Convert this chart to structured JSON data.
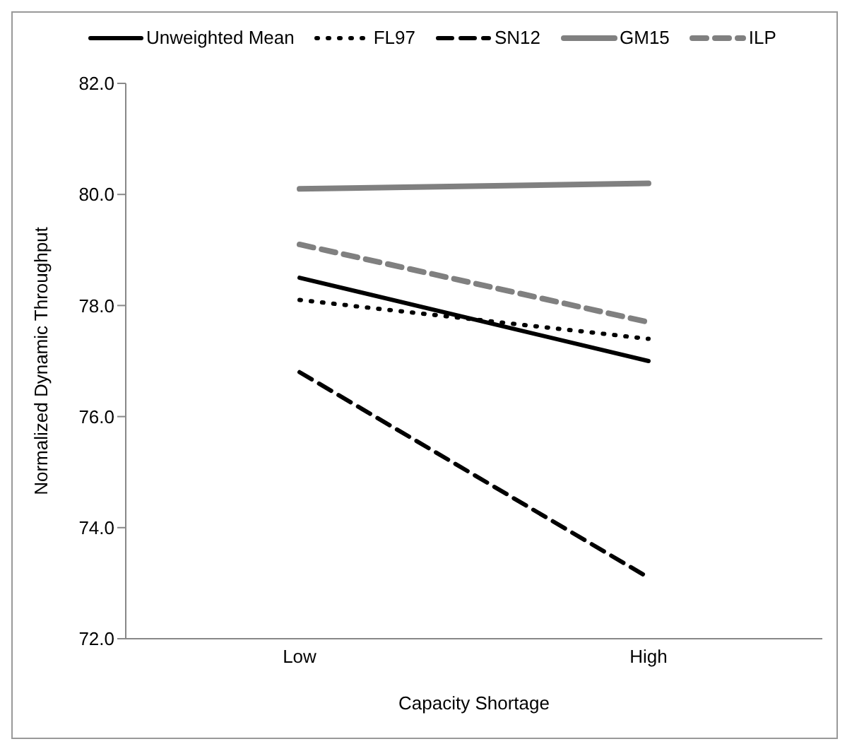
{
  "chart_data": {
    "type": "line",
    "xlabel": "Capacity Shortage",
    "ylabel": "Normalized Dynamic Throughput",
    "categories": [
      "Low",
      "High"
    ],
    "ylim": [
      72,
      82
    ],
    "yticks": [
      {
        "value": 72,
        "label": "72.0"
      },
      {
        "value": 74,
        "label": "74.0"
      },
      {
        "value": 76,
        "label": "76.0"
      },
      {
        "value": 78,
        "label": "78.0"
      },
      {
        "value": 80,
        "label": "80.0"
      },
      {
        "value": 82,
        "label": "82.0"
      }
    ],
    "grid": false,
    "legend": "top",
    "marker": "none",
    "series": [
      {
        "name": "Unweighted Mean",
        "color": "#000000",
        "line_style": "solid",
        "values": [
          78.5,
          77.0
        ]
      },
      {
        "name": "FL97",
        "color": "#000000",
        "line_style": "dotted",
        "values": [
          78.1,
          77.4
        ]
      },
      {
        "name": "SN12",
        "color": "#000000",
        "line_style": "dashed",
        "values": [
          76.8,
          73.1
        ]
      },
      {
        "name": "GM15",
        "color": "#808080",
        "line_style": "solid",
        "values": [
          80.1,
          80.2
        ]
      },
      {
        "name": "ILP",
        "color": "#808080",
        "line_style": "dashed",
        "values": [
          79.1,
          77.7
        ]
      }
    ]
  }
}
